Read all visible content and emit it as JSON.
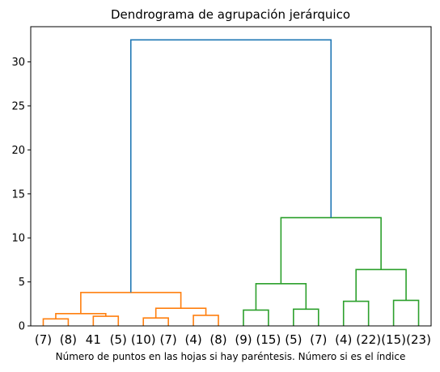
{
  "chart_data": {
    "type": "dendrogram",
    "title": "Dendrograma de agrupación jerárquico",
    "xlabel": "Número de puntos en las hojas si hay paréntesis. Número si es el índice",
    "ylabel": "",
    "ylim": [
      0,
      34
    ],
    "yticks": [
      0,
      5,
      10,
      15,
      20,
      25,
      30
    ],
    "grid": false,
    "leaves": [
      "(7)",
      "(8)",
      "41",
      "(5)",
      "(10)",
      "(7)",
      "(4)",
      "(8)",
      "(9)",
      "(15)",
      "(5)",
      "(7)",
      "(4)",
      "(22)",
      "(15)",
      "(23)"
    ],
    "colors": {
      "orange": "#ff7f0e",
      "green": "#2ca02c",
      "blue": "#1f77b4"
    },
    "merges": [
      {
        "left": 0,
        "right": 1,
        "height": 0.8,
        "color": "orange"
      },
      {
        "left": 2,
        "right": 3,
        "height": 1.1,
        "color": "orange"
      },
      {
        "left": "m0",
        "right": "m1",
        "height": 1.4,
        "color": "orange"
      },
      {
        "left": 4,
        "right": 5,
        "height": 0.9,
        "color": "orange"
      },
      {
        "left": 6,
        "right": 7,
        "height": 1.2,
        "color": "orange"
      },
      {
        "left": "m3",
        "right": "m4",
        "height": 2.0,
        "color": "orange"
      },
      {
        "left": "m2",
        "right": "m5",
        "height": 3.8,
        "color": "orange"
      },
      {
        "left": 8,
        "right": 9,
        "height": 1.8,
        "color": "green"
      },
      {
        "left": 10,
        "right": 11,
        "height": 1.9,
        "color": "green"
      },
      {
        "left": "m7",
        "right": "m8",
        "height": 4.8,
        "color": "green"
      },
      {
        "left": 12,
        "right": 13,
        "height": 2.8,
        "color": "green"
      },
      {
        "left": 14,
        "right": 15,
        "height": 2.9,
        "color": "green"
      },
      {
        "left": "m10",
        "right": "m11",
        "height": 6.4,
        "color": "green"
      },
      {
        "left": "m9",
        "right": "m12",
        "height": 12.3,
        "color": "green"
      },
      {
        "left": "m6",
        "right": "m13",
        "height": 32.5,
        "color": "blue"
      }
    ]
  }
}
